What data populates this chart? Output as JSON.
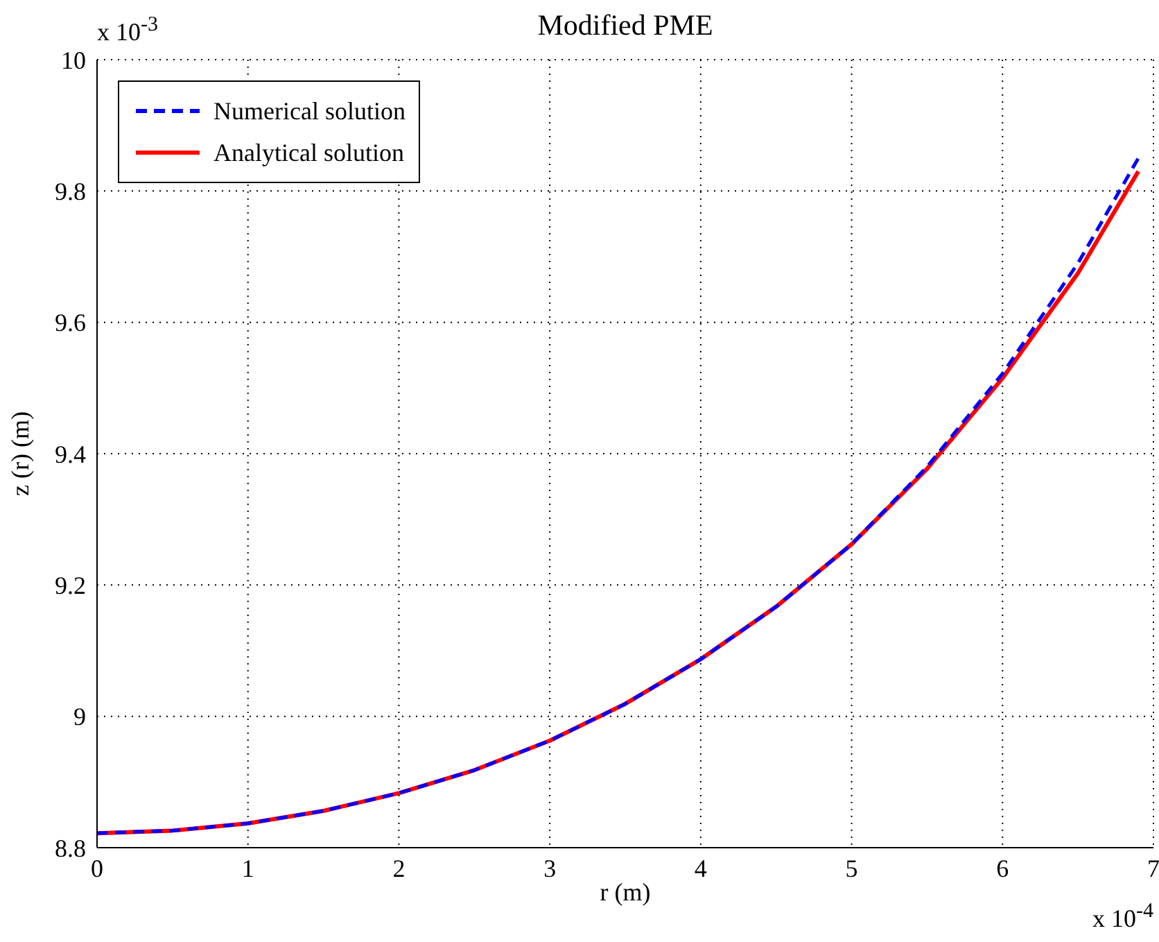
{
  "chart_data": {
    "type": "line",
    "title": "Modified PME",
    "xlabel": "r (m)",
    "ylabel": "z (r) (m)",
    "annotations": [
      "x 10$^{-4}$",
      "x 10$^{-3}$"
    ],
    "series": [
      {
        "name": "Numerical solution",
        "color": "#0000ff",
        "line_style": "dashed",
        "x": [
          0,
          0.5,
          1,
          1.5,
          2,
          2.5,
          3,
          3.5,
          4,
          4.5,
          5,
          5.5,
          6,
          6.5,
          6.9
        ],
        "values": [
          8.822,
          8.826,
          8.837,
          8.856,
          8.883,
          8.918,
          8.963,
          9.019,
          9.087,
          9.167,
          9.262,
          9.38,
          9.522,
          9.69,
          9.85
        ]
      },
      {
        "name": "Analytical solution",
        "color": "#ff0000",
        "line_style": "solid",
        "x": [
          0,
          0.5,
          1,
          1.5,
          2,
          2.5,
          3,
          3.5,
          4,
          4.5,
          5,
          5.5,
          6,
          6.5,
          6.9
        ],
        "values": [
          8.822,
          8.826,
          8.837,
          8.856,
          8.883,
          8.918,
          8.963,
          9.019,
          9.087,
          9.167,
          9.262,
          9.377,
          9.515,
          9.675,
          9.83
        ]
      }
    ],
    "xlim": [
      0,
      7
    ],
    "xticks": [
      0,
      1,
      2,
      3,
      4,
      5,
      6,
      7
    ],
    "ylim": [
      8.8,
      10
    ],
    "yticks": [
      8.8,
      9,
      9.2,
      9.4,
      9.6,
      9.8,
      10
    ],
    "grid": true,
    "legend": "top left",
    "marker": "none"
  }
}
